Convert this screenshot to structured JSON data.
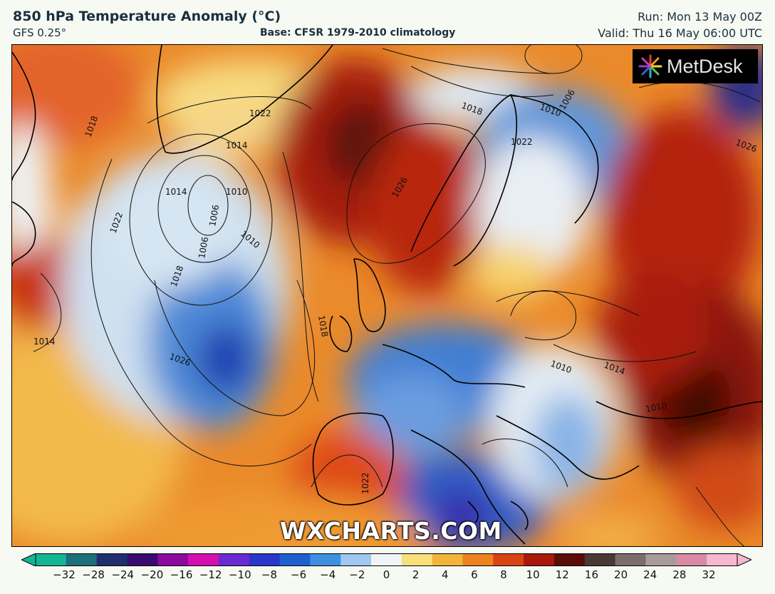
{
  "header": {
    "title": "850 hPa Temperature Anomaly (°C)",
    "model": "GFS 0.25°",
    "base": "Base: CFSR 1979-2010 climatology",
    "run": "Run: Mon 13 May 00Z",
    "valid": "Valid: Thu 16 May 06:00 UTC"
  },
  "logo": {
    "text": "MetDesk",
    "icon": "starburst-logo-icon"
  },
  "watermark": "WXCHARTS.COM",
  "isobar_labels": [
    "1018",
    "1014",
    "1010",
    "1006",
    "1022",
    "1014",
    "1010",
    "1006",
    "1022",
    "1018",
    "1014",
    "1026",
    "1018",
    "1022",
    "1026",
    "1010",
    "1010",
    "1014",
    "1010",
    "1018",
    "1006",
    "1026",
    "1022"
  ],
  "colorbar": {
    "ticks": [
      "−32",
      "−28",
      "−24",
      "−20",
      "−16",
      "−12",
      "−10",
      "−8",
      "−6",
      "−4",
      "−2",
      "0",
      "2",
      "4",
      "6",
      "8",
      "10",
      "12",
      "16",
      "20",
      "24",
      "28",
      "32"
    ],
    "colors": [
      "#14b592",
      "#1d6f7a",
      "#1f2f6e",
      "#3b0a6e",
      "#8a0aa0",
      "#d40fb0",
      "#6a2ad0",
      "#2a37c8",
      "#1f5fd0",
      "#3f8fe0",
      "#9fc7ef",
      "#f0f4f6",
      "#f7e07a",
      "#f3b43a",
      "#ec8220",
      "#d84312",
      "#a8180b",
      "#5a0c06",
      "#4a3a36",
      "#7a6e6c",
      "#a89c9a",
      "#d98aa6",
      "#f4b8d0"
    ]
  }
}
